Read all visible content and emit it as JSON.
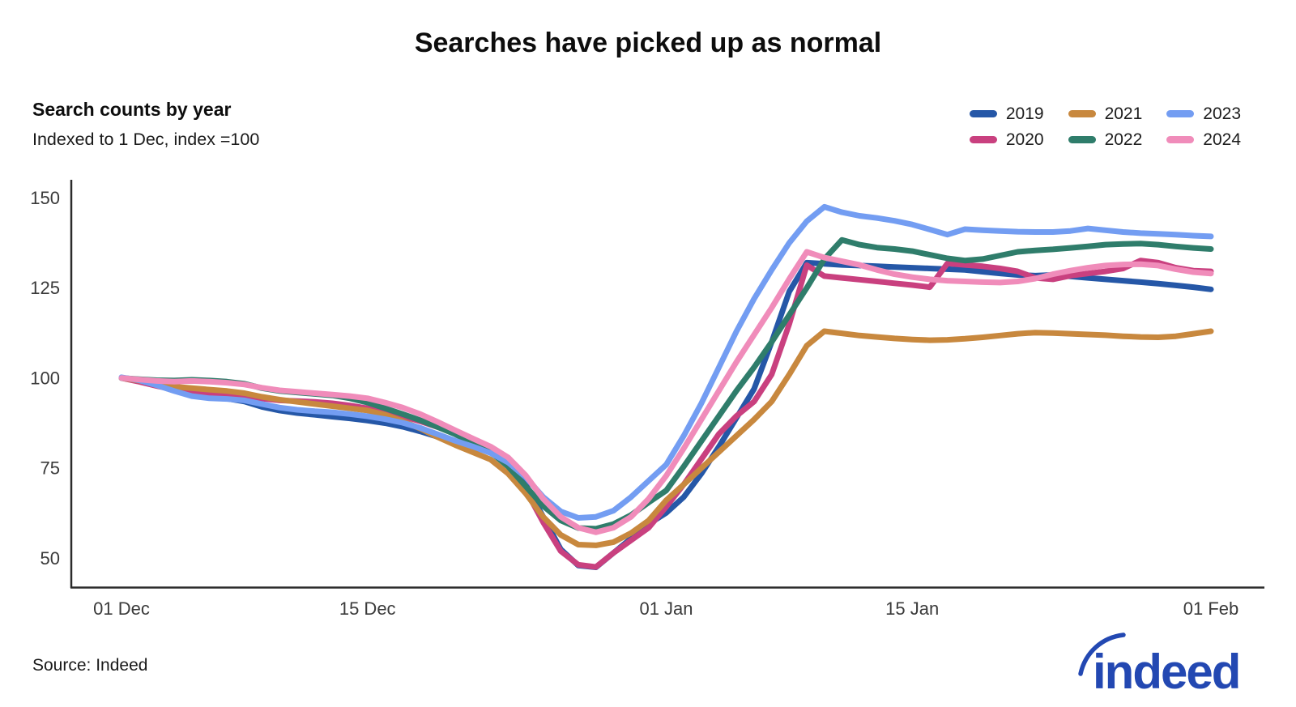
{
  "title": "Searches have picked up as normal",
  "subtitle": {
    "heading": "Search counts by year",
    "note": "Indexed to 1 Dec, index =100"
  },
  "source": "Source: Indeed",
  "logo_text": "indeed",
  "legend_order": [
    "2019",
    "2021",
    "2023",
    "2020",
    "2022",
    "2024"
  ],
  "axis_color": "#2b2b2b",
  "tick_text_color": "#3a3a3a",
  "logo_color": "#2348b2",
  "chart_data": {
    "type": "line",
    "title": "Searches have picked up as normal",
    "subtitle": "Search counts by year — Indexed to 1 Dec, index =100",
    "xlabel": "",
    "ylabel": "",
    "x_unit": "days since 01 Dec",
    "xlim": [
      0,
      62
    ],
    "ylim": [
      42,
      155
    ],
    "grid": false,
    "legend_position": "top-right",
    "y_ticks": [
      50,
      75,
      100,
      125,
      150
    ],
    "x_ticks": [
      {
        "label": "01 Dec",
        "day": 0
      },
      {
        "label": "15 Dec",
        "day": 14
      },
      {
        "label": "01 Jan",
        "day": 31
      },
      {
        "label": "15 Jan",
        "day": 45
      },
      {
        "label": "01 Feb",
        "day": 62
      }
    ],
    "series": [
      {
        "name": "2019",
        "color": "#2557a7",
        "values": [
          100,
          99.2,
          98,
          96.5,
          95.5,
          94.7,
          94.3,
          93.5,
          92,
          91,
          90.3,
          89.8,
          89.3,
          88.8,
          88.2,
          87.5,
          86.5,
          85.2,
          83.7,
          82.2,
          80.8,
          79.5,
          76.5,
          70.5,
          61.5,
          52.5,
          48,
          47.5,
          51.5,
          55.5,
          59.5,
          62.6,
          67,
          73.5,
          81,
          89,
          97,
          110,
          124,
          132,
          131.7,
          131.4,
          131.2,
          131,
          130.8,
          130.6,
          130.4,
          130.2,
          130,
          129.5,
          129,
          128.6,
          128.4,
          128.6,
          128.2,
          127.8,
          127.4,
          127,
          126.6,
          126.2,
          125.7,
          125.2,
          124.6
        ]
      },
      {
        "name": "2020",
        "color": "#c9407f",
        "values": [
          100,
          99,
          97.8,
          96.8,
          96.2,
          95.8,
          95.5,
          95,
          94.3,
          93.8,
          93.6,
          93.4,
          93,
          92.4,
          91.6,
          90.6,
          89.4,
          88,
          86.4,
          84.6,
          83,
          80.5,
          76,
          69,
          60,
          52,
          48.2,
          47.6,
          51.5,
          55,
          58.5,
          64.3,
          70.5,
          77.5,
          84.5,
          89.5,
          93.5,
          101,
          115,
          131.3,
          128.3,
          127.8,
          127.3,
          126.8,
          126.3,
          125.8,
          125.2,
          131.8,
          131.4,
          131,
          130.4,
          129.6,
          127.8,
          127.4,
          128.4,
          129,
          129.6,
          130.4,
          132.6,
          132,
          130.6,
          129.8,
          129.6
        ]
      },
      {
        "name": "2021",
        "color": "#c8883e",
        "values": [
          100,
          99.3,
          98.4,
          97.6,
          97.2,
          96.8,
          96.4,
          95.8,
          94.8,
          94,
          93.4,
          92.8,
          92.2,
          91.6,
          91,
          89.8,
          88,
          86,
          83.6,
          81.4,
          79.4,
          77.4,
          73.5,
          68,
          61.5,
          56.5,
          53.8,
          53.6,
          54.5,
          57,
          60.5,
          66.1,
          70.5,
          75,
          79.5,
          84,
          88.5,
          93.5,
          101,
          109,
          113,
          112.4,
          111.8,
          111.4,
          111,
          110.7,
          110.5,
          110.6,
          110.9,
          111.3,
          111.8,
          112.3,
          112.6,
          112.5,
          112.3,
          112.1,
          111.9,
          111.6,
          111.4,
          111.3,
          111.6,
          112.3,
          113
        ]
      },
      {
        "name": "2022",
        "color": "#2f7d6b",
        "values": [
          100,
          99.7,
          99.4,
          99.3,
          99.5,
          99.3,
          99,
          98.4,
          97.2,
          96.4,
          96,
          95.6,
          95.2,
          94.4,
          93.2,
          91.6,
          90,
          88.3,
          86.4,
          84.4,
          82,
          79.5,
          75.5,
          70,
          64.5,
          60.5,
          58.4,
          58.2,
          59.5,
          62,
          65.5,
          68.8,
          75.5,
          82.5,
          89.5,
          96.5,
          103,
          110,
          117.5,
          125,
          133,
          138.3,
          137,
          136.2,
          135.8,
          135.2,
          134.2,
          133.2,
          132.6,
          133,
          134,
          135,
          135.4,
          135.7,
          136.1,
          136.5,
          137,
          137.2,
          137.3,
          137,
          136.5,
          136.1,
          135.8
        ]
      },
      {
        "name": "2023",
        "color": "#739df2",
        "values": [
          100.2,
          99.4,
          98,
          96.4,
          95,
          94.4,
          94.2,
          93.8,
          92.8,
          91.8,
          91.2,
          90.8,
          90.5,
          90,
          89.4,
          88.6,
          87.6,
          86.2,
          84.4,
          82.6,
          81,
          79.2,
          76.6,
          72.5,
          67,
          63,
          61.2,
          61.5,
          63.2,
          67,
          71.5,
          76,
          84,
          93,
          103,
          113,
          122,
          130,
          137.5,
          143.5,
          147.5,
          146,
          145,
          144.4,
          143.6,
          142.6,
          141.2,
          139.8,
          141.3,
          141,
          140.8,
          140.6,
          140.5,
          140.5,
          140.8,
          141.5,
          141,
          140.5,
          140.2,
          140,
          139.8,
          139.5,
          139.3
        ]
      },
      {
        "name": "2024",
        "color": "#f08cba",
        "values": [
          100,
          99.6,
          99.2,
          99,
          99.2,
          99,
          98.7,
          98.2,
          97.3,
          96.6,
          96.2,
          95.8,
          95.4,
          95,
          94.4,
          93.2,
          91.8,
          90,
          87.8,
          85.5,
          83.2,
          81,
          78,
          73,
          66.5,
          61.5,
          58.5,
          57.2,
          58.5,
          61.5,
          66.5,
          72.9,
          80.5,
          88.5,
          96.5,
          104.5,
          112,
          119.5,
          127.5,
          135,
          133.4,
          132.4,
          131.4,
          130,
          128.8,
          128,
          127.4,
          127,
          126.8,
          126.6,
          126.5,
          126.8,
          127.6,
          128.8,
          129.8,
          130.6,
          131.2,
          131.5,
          131.6,
          131.2,
          130.2,
          129.4,
          129
        ]
      }
    ]
  }
}
